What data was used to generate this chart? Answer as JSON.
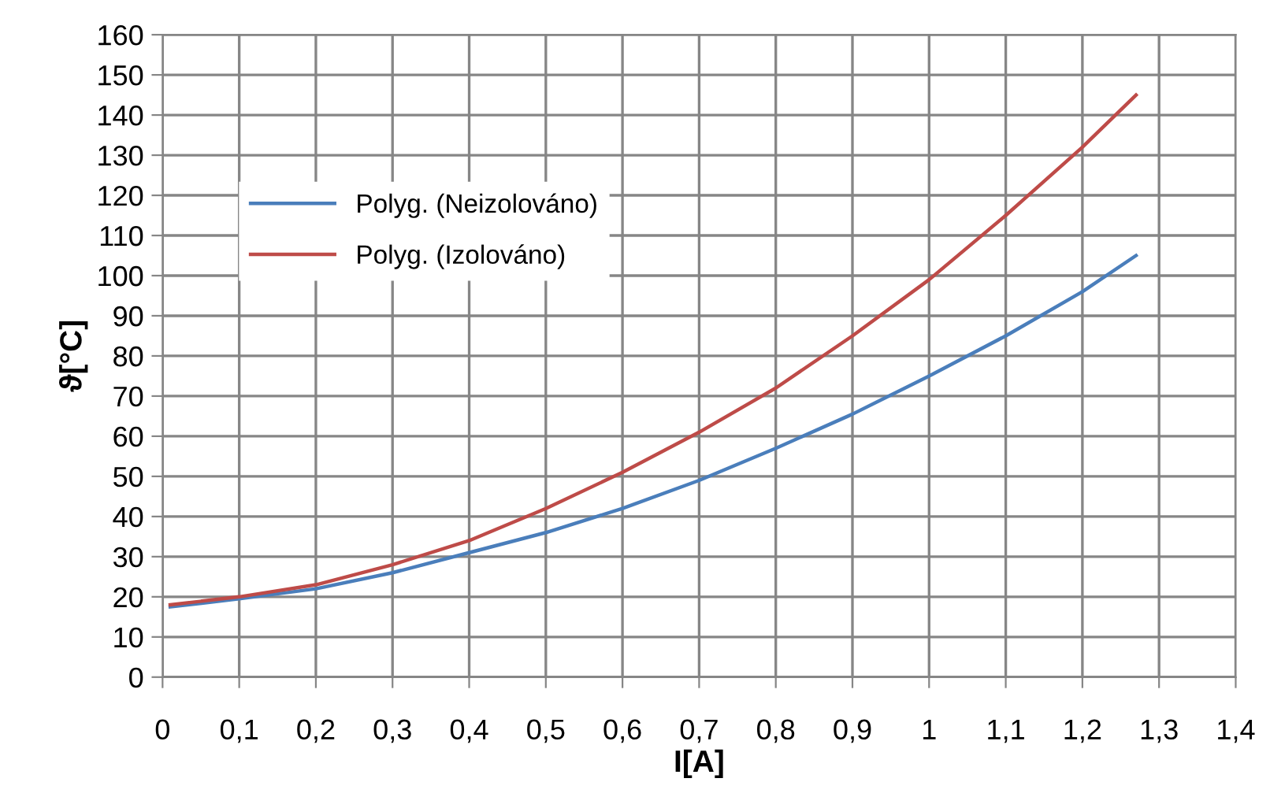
{
  "chart_data": {
    "type": "line",
    "xlabel": "I[A]",
    "ylabel": "ϑ[°C]",
    "x": [
      0.01,
      0.1,
      0.2,
      0.3,
      0.4,
      0.5,
      0.6,
      0.7,
      0.8,
      0.9,
      1.0,
      1.1,
      1.2,
      1.27
    ],
    "series": [
      {
        "name": "Polyg. (Neizolováno)",
        "color": "#4a7ebb",
        "values": [
          17.5,
          19.5,
          22,
          26,
          31,
          36,
          42,
          49,
          57,
          65.5,
          75,
          85,
          96,
          105
        ]
      },
      {
        "name": "Polyg. (Izolováno)",
        "color": "#be4b48",
        "values": [
          18,
          20,
          23,
          28,
          34,
          42,
          51,
          61,
          72,
          85,
          99,
          115,
          132,
          145
        ]
      }
    ],
    "xlim": [
      0,
      1.4
    ],
    "xticks": [
      0,
      {
        "value": 0.1,
        "label": "0,1"
      },
      {
        "value": 0.2,
        "label": "0,2"
      },
      {
        "value": 0.3,
        "label": "0,3"
      },
      {
        "value": 0.4,
        "label": "0,4"
      },
      {
        "value": 0.5,
        "label": "0,5"
      },
      {
        "value": 0.6,
        "label": "0,6"
      },
      {
        "value": 0.7,
        "label": "0,7"
      },
      {
        "value": 0.8,
        "label": "0,8"
      },
      {
        "value": 0.9,
        "label": "0,9"
      },
      1,
      {
        "value": 1.1,
        "label": "1,1"
      },
      {
        "value": 1.2,
        "label": "1,2"
      },
      {
        "value": 1.3,
        "label": "1,3"
      },
      {
        "value": 1.4,
        "label": "1,4"
      }
    ],
    "ylim": [
      0,
      160
    ],
    "yticks": [
      0,
      10,
      20,
      30,
      40,
      50,
      60,
      70,
      80,
      90,
      100,
      110,
      120,
      130,
      140,
      150,
      160
    ],
    "grid": true,
    "legend": "top left",
    "marker": "none",
    "line_style": "solid"
  }
}
